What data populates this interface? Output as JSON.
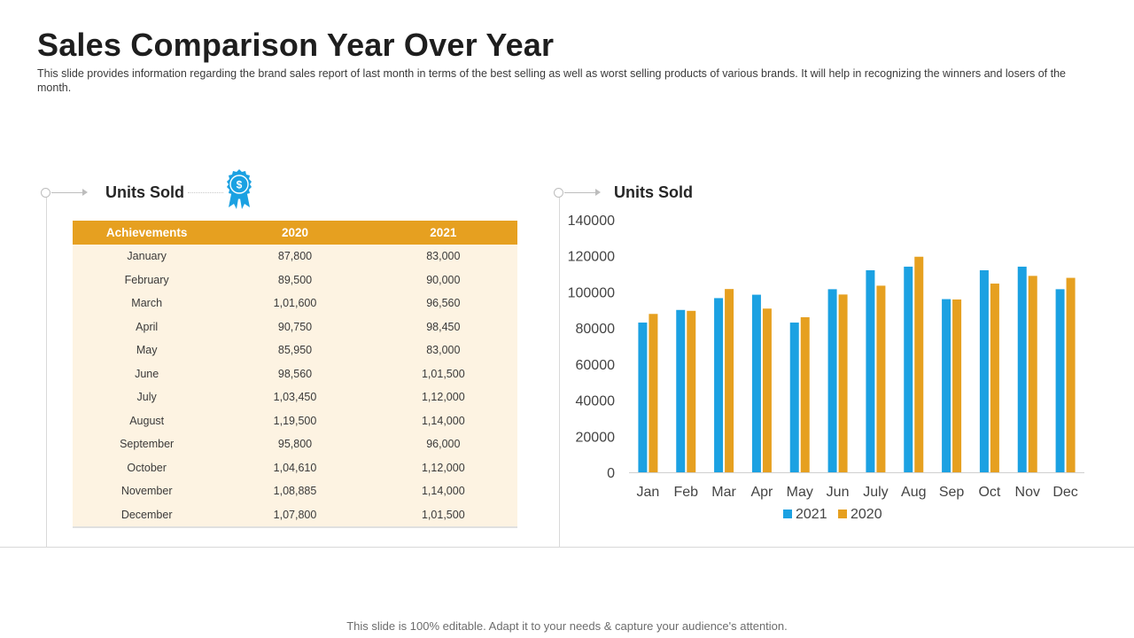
{
  "page": {
    "title": "Sales Comparison Year Over Year",
    "subtitle": "This slide provides information regarding the brand sales report of last month in terms of the best selling as well as worst selling products of various brands. It will help in recognizing the winners and losers of the month.",
    "footer": "This slide is 100% editable. Adapt it to your needs & capture your audience's attention."
  },
  "left_panel": {
    "heading": "Units Sold",
    "table": {
      "headers": [
        "Achievements",
        "2020",
        "2021"
      ],
      "rows": [
        [
          "January",
          "87,800",
          "83,000"
        ],
        [
          "February",
          "89,500",
          "90,000"
        ],
        [
          "March",
          "1,01,600",
          "96,560"
        ],
        [
          "April",
          "90,750",
          "98,450"
        ],
        [
          "May",
          "85,950",
          "83,000"
        ],
        [
          "June",
          "98,560",
          "1,01,500"
        ],
        [
          "July",
          "1,03,450",
          "1,12,000"
        ],
        [
          "August",
          "1,19,500",
          "1,14,000"
        ],
        [
          "September",
          "95,800",
          "96,000"
        ],
        [
          "October",
          "1,04,610",
          "1,12,000"
        ],
        [
          "November",
          "1,08,885",
          "1,14,000"
        ],
        [
          "December",
          "1,07,800",
          "1,01,500"
        ]
      ]
    }
  },
  "right_panel": {
    "heading": "Units Sold"
  },
  "colors": {
    "accent_orange": "#e6a020",
    "series_2021": "#1ba1e2",
    "series_2020": "#e6a020",
    "table_body": "#fdf3e2"
  },
  "chart_data": {
    "type": "bar",
    "title": "Units Sold",
    "categories": [
      "Jan",
      "Feb",
      "Mar",
      "Apr",
      "May",
      "Jun",
      "July",
      "Aug",
      "Sep",
      "Oct",
      "Nov",
      "Dec"
    ],
    "series": [
      {
        "name": "2021",
        "color": "#1ba1e2",
        "values": [
          83000,
          90000,
          96560,
          98450,
          83000,
          101500,
          112000,
          114000,
          96000,
          112000,
          114000,
          101500
        ]
      },
      {
        "name": "2020",
        "color": "#e6a020",
        "values": [
          87800,
          89500,
          101600,
          90750,
          85950,
          98560,
          103450,
          119500,
          95800,
          104610,
          108885,
          107800
        ]
      }
    ],
    "yticks": [
      "0",
      "20000",
      "40000",
      "60000",
      "80000",
      "100000",
      "120000",
      "140000"
    ],
    "ylim": [
      0,
      140000
    ],
    "xlabel": "",
    "ylabel": "",
    "legend": "bottom",
    "grid": false
  }
}
